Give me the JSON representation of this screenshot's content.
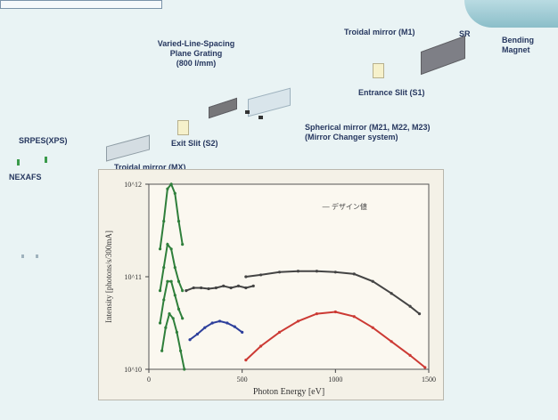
{
  "diagram": {
    "labels": {
      "toroidal_m1": "Troidal mirror (M1)",
      "sr": "SR",
      "bending": "Bending\nMagnet",
      "vls_title": "Varied-Line-Spacing\nPlane Grating\n(800 l/mm)",
      "entrance_slit": "Entrance Slit (S1)",
      "spherical_mirror": "Spherical mirror (M21, M22, M23)\n(Mirror Changer system)",
      "exit_slit": "Exit Slit (S2)",
      "srpes": "SRPES(XPS)",
      "nexafs": "NEXAFS",
      "toroidal_mx": "Troidal mirror (MX)"
    },
    "colors": {
      "label": "#26375f",
      "green": "#3a9a4a"
    }
  },
  "chart_data": {
    "type": "line",
    "xlabel": "Photon Energy [eV]",
    "ylabel": "Intensity [photons/s/300mA]",
    "xlim": [
      0,
      1500
    ],
    "ylim_log10": [
      10,
      12
    ],
    "xticks": [
      "0",
      "500",
      "1000",
      "1500"
    ],
    "yticks": [
      "10^10",
      "10^11",
      "10^12"
    ],
    "legend": {
      "text": "— デザイン値",
      "position": "top-right"
    },
    "series": [
      {
        "color": "#2f7f3b",
        "points": [
          [
            60,
            11.3
          ],
          [
            80,
            11.6
          ],
          [
            100,
            11.95
          ],
          [
            120,
            12.0
          ],
          [
            140,
            11.9
          ],
          [
            160,
            11.6
          ],
          [
            180,
            11.35
          ]
        ]
      },
      {
        "color": "#2f7f3b",
        "points": [
          [
            60,
            10.85
          ],
          [
            80,
            11.1
          ],
          [
            100,
            11.35
          ],
          [
            120,
            11.3
          ],
          [
            140,
            11.1
          ],
          [
            160,
            10.95
          ],
          [
            180,
            10.85
          ]
        ]
      },
      {
        "color": "#2f7f3b",
        "points": [
          [
            60,
            10.5
          ],
          [
            80,
            10.75
          ],
          [
            100,
            10.95
          ],
          [
            120,
            10.95
          ],
          [
            140,
            10.8
          ],
          [
            160,
            10.65
          ],
          [
            180,
            10.55
          ]
        ]
      },
      {
        "color": "#2f7f3b",
        "points": [
          [
            70,
            10.2
          ],
          [
            90,
            10.45
          ],
          [
            110,
            10.6
          ],
          [
            130,
            10.55
          ],
          [
            150,
            10.4
          ],
          [
            170,
            10.2
          ],
          [
            190,
            10.0
          ]
        ]
      },
      {
        "color": "#444444",
        "points": [
          [
            200,
            10.85
          ],
          [
            240,
            10.88
          ],
          [
            280,
            10.88
          ],
          [
            320,
            10.87
          ],
          [
            360,
            10.88
          ],
          [
            400,
            10.9
          ],
          [
            440,
            10.88
          ],
          [
            480,
            10.9
          ],
          [
            520,
            10.88
          ],
          [
            560,
            10.9
          ]
        ]
      },
      {
        "color": "#444444",
        "points": [
          [
            520,
            11.0
          ],
          [
            600,
            11.02
          ],
          [
            700,
            11.05
          ],
          [
            800,
            11.06
          ],
          [
            900,
            11.06
          ],
          [
            1000,
            11.05
          ],
          [
            1100,
            11.03
          ],
          [
            1200,
            10.95
          ],
          [
            1300,
            10.82
          ],
          [
            1400,
            10.68
          ],
          [
            1450,
            10.6
          ]
        ]
      },
      {
        "color": "#2d3f9b",
        "points": [
          [
            220,
            10.32
          ],
          [
            260,
            10.38
          ],
          [
            300,
            10.45
          ],
          [
            340,
            10.5
          ],
          [
            380,
            10.52
          ],
          [
            420,
            10.5
          ],
          [
            460,
            10.46
          ],
          [
            500,
            10.4
          ]
        ]
      },
      {
        "color": "#cc3a34",
        "points": [
          [
            520,
            10.1
          ],
          [
            600,
            10.25
          ],
          [
            700,
            10.4
          ],
          [
            800,
            10.52
          ],
          [
            900,
            10.6
          ],
          [
            1000,
            10.62
          ],
          [
            1100,
            10.57
          ],
          [
            1200,
            10.45
          ],
          [
            1300,
            10.3
          ],
          [
            1400,
            10.15
          ],
          [
            1480,
            10.02
          ]
        ]
      }
    ]
  }
}
